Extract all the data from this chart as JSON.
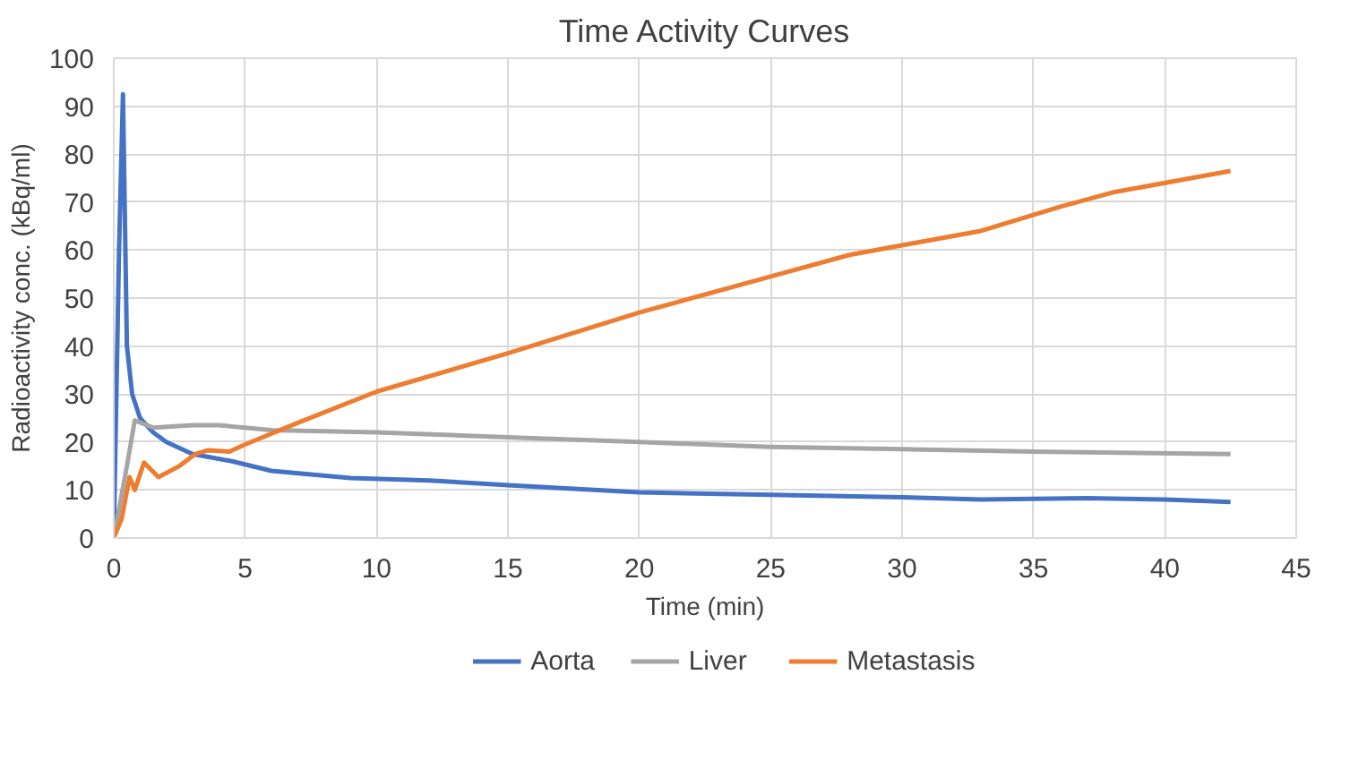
{
  "chart_data": {
    "type": "line",
    "title": "Time Activity Curves",
    "xlabel": "Time (min)",
    "ylabel": "Radioactivity conc. (kBq/ml)",
    "xlim": [
      0,
      45
    ],
    "xticks": [
      0,
      5,
      10,
      15,
      20,
      25,
      30,
      35,
      40,
      45
    ],
    "ylim": [
      0,
      100
    ],
    "yticks": [
      0,
      10,
      20,
      30,
      40,
      50,
      60,
      70,
      80,
      90,
      100
    ],
    "grid": true,
    "legend": "bottom",
    "marker": "none",
    "line_style": "solid",
    "series": [
      {
        "name": "Aorta",
        "color": "#4472c4",
        "x": [
          0,
          0.2,
          0.35,
          0.5,
          0.7,
          1,
          1.5,
          2,
          3,
          4.5,
          6,
          9,
          12,
          15,
          20,
          25,
          30,
          33,
          37,
          40,
          42.5
        ],
        "values": [
          0,
          60,
          92.5,
          40,
          30,
          25,
          22,
          20,
          17.5,
          16,
          14,
          12.5,
          12,
          11,
          9.5,
          9,
          8.5,
          8,
          8.3,
          8,
          7.5
        ]
      },
      {
        "name": "Liver",
        "color": "#a5a5a5",
        "x": [
          0,
          0.5,
          0.8,
          1.5,
          3,
          4,
          6,
          10,
          15,
          20,
          25,
          30,
          35,
          42.5
        ],
        "values": [
          0,
          15,
          24.5,
          23,
          23.5,
          23.5,
          22.5,
          22,
          21,
          20,
          19,
          18.5,
          18,
          17.5
        ]
      },
      {
        "name": "Metastasis",
        "color": "#ed7d31",
        "x": [
          0,
          0.3,
          0.6,
          0.8,
          1.15,
          1.7,
          2.5,
          3.1,
          3.6,
          4.4,
          5,
          7,
          10,
          15,
          20,
          25,
          28,
          30,
          33,
          36,
          38,
          42.5
        ],
        "values": [
          0,
          4,
          12.7,
          10,
          15.7,
          12.7,
          15,
          17.5,
          18.3,
          18,
          19.5,
          24,
          30.5,
          38.5,
          47,
          54.5,
          59,
          61,
          64,
          69,
          72,
          76.5
        ]
      }
    ]
  }
}
